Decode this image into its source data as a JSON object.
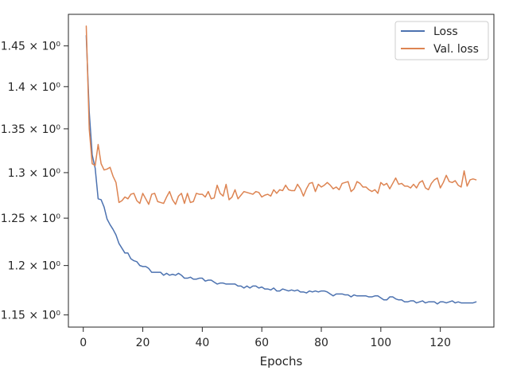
{
  "chart_data": {
    "type": "line",
    "title": "",
    "xlabel": "Epochs",
    "ylabel": "",
    "y_scale": "log",
    "grid": false,
    "legend_position": "top-right",
    "xlim": [
      -5,
      138
    ],
    "ylim": [
      1.138,
      1.49
    ],
    "x_ticks": [
      {
        "value": 0,
        "label": "0"
      },
      {
        "value": 20,
        "label": "20"
      },
      {
        "value": 40,
        "label": "40"
      },
      {
        "value": 60,
        "label": "60"
      },
      {
        "value": 80,
        "label": "80"
      },
      {
        "value": 100,
        "label": "100"
      },
      {
        "value": 120,
        "label": "120"
      }
    ],
    "y_ticks": [
      {
        "value": 1.15,
        "label": "1.15 × 10⁰"
      },
      {
        "value": 1.2,
        "label": "1.2 × 10⁰"
      },
      {
        "value": 1.25,
        "label": "1.25 × 10⁰"
      },
      {
        "value": 1.3,
        "label": "1.3 × 10⁰"
      },
      {
        "value": 1.35,
        "label": "1.35 × 10⁰"
      },
      {
        "value": 1.4,
        "label": "1.4 × 10⁰"
      },
      {
        "value": 1.45,
        "label": "1.45 × 10⁰"
      }
    ],
    "x": [
      1,
      2,
      3,
      4,
      5,
      6,
      7,
      8,
      9,
      10,
      11,
      12,
      13,
      14,
      15,
      16,
      17,
      18,
      19,
      20,
      21,
      22,
      23,
      24,
      25,
      26,
      27,
      28,
      29,
      30,
      31,
      32,
      33,
      34,
      35,
      36,
      37,
      38,
      39,
      40,
      41,
      42,
      43,
      44,
      45,
      46,
      47,
      48,
      49,
      50,
      51,
      52,
      53,
      54,
      55,
      56,
      57,
      58,
      59,
      60,
      61,
      62,
      63,
      64,
      65,
      66,
      67,
      68,
      69,
      70,
      71,
      72,
      73,
      74,
      75,
      76,
      77,
      78,
      79,
      80,
      81,
      82,
      83,
      84,
      85,
      86,
      87,
      88,
      89,
      90,
      91,
      92,
      93,
      94,
      95,
      96,
      97,
      98,
      99,
      100,
      101,
      102,
      103,
      104,
      105,
      106,
      107,
      108,
      109,
      110,
      111,
      112,
      113,
      114,
      115,
      116,
      117,
      118,
      119,
      120,
      121,
      122,
      123,
      124,
      125,
      126,
      127,
      128,
      129,
      130,
      131,
      132
    ],
    "series": [
      {
        "name": "Loss",
        "color": "#4c72b0",
        "values": [
          1.463,
          1.37,
          1.32,
          1.305,
          1.271,
          1.27,
          1.262,
          1.249,
          1.243,
          1.238,
          1.232,
          1.223,
          1.218,
          1.213,
          1.213,
          1.207,
          1.205,
          1.204,
          1.2,
          1.199,
          1.199,
          1.197,
          1.193,
          1.193,
          1.193,
          1.193,
          1.19,
          1.192,
          1.19,
          1.191,
          1.19,
          1.192,
          1.19,
          1.187,
          1.187,
          1.188,
          1.186,
          1.186,
          1.187,
          1.187,
          1.184,
          1.185,
          1.185,
          1.183,
          1.181,
          1.182,
          1.182,
          1.181,
          1.181,
          1.181,
          1.181,
          1.179,
          1.179,
          1.177,
          1.179,
          1.177,
          1.179,
          1.179,
          1.177,
          1.178,
          1.176,
          1.176,
          1.175,
          1.177,
          1.174,
          1.174,
          1.176,
          1.175,
          1.174,
          1.175,
          1.174,
          1.175,
          1.173,
          1.173,
          1.172,
          1.174,
          1.173,
          1.174,
          1.173,
          1.174,
          1.174,
          1.173,
          1.171,
          1.169,
          1.171,
          1.171,
          1.171,
          1.17,
          1.17,
          1.168,
          1.17,
          1.169,
          1.169,
          1.169,
          1.169,
          1.168,
          1.168,
          1.169,
          1.169,
          1.167,
          1.165,
          1.165,
          1.168,
          1.168,
          1.166,
          1.165,
          1.165,
          1.163,
          1.163,
          1.164,
          1.164,
          1.162,
          1.163,
          1.164,
          1.162,
          1.163,
          1.163,
          1.163,
          1.161,
          1.163,
          1.163,
          1.162,
          1.163,
          1.164,
          1.162,
          1.163,
          1.162,
          1.162,
          1.162,
          1.162,
          1.162,
          1.163
        ]
      },
      {
        "name": "Val. loss",
        "color": "#dd8452",
        "values": [
          1.475,
          1.35,
          1.31,
          1.308,
          1.332,
          1.31,
          1.303,
          1.304,
          1.306,
          1.296,
          1.289,
          1.267,
          1.269,
          1.273,
          1.271,
          1.276,
          1.277,
          1.269,
          1.266,
          1.277,
          1.271,
          1.265,
          1.276,
          1.277,
          1.268,
          1.267,
          1.266,
          1.273,
          1.279,
          1.27,
          1.265,
          1.274,
          1.277,
          1.266,
          1.277,
          1.267,
          1.268,
          1.277,
          1.276,
          1.276,
          1.273,
          1.279,
          1.271,
          1.272,
          1.286,
          1.277,
          1.274,
          1.287,
          1.27,
          1.273,
          1.281,
          1.271,
          1.275,
          1.279,
          1.278,
          1.277,
          1.276,
          1.279,
          1.278,
          1.273,
          1.275,
          1.276,
          1.274,
          1.281,
          1.277,
          1.281,
          1.28,
          1.286,
          1.281,
          1.28,
          1.28,
          1.287,
          1.282,
          1.274,
          1.282,
          1.288,
          1.289,
          1.279,
          1.287,
          1.284,
          1.286,
          1.289,
          1.286,
          1.282,
          1.284,
          1.281,
          1.288,
          1.289,
          1.29,
          1.279,
          1.282,
          1.29,
          1.288,
          1.284,
          1.284,
          1.281,
          1.279,
          1.281,
          1.277,
          1.289,
          1.286,
          1.288,
          1.282,
          1.288,
          1.294,
          1.287,
          1.288,
          1.285,
          1.285,
          1.283,
          1.287,
          1.283,
          1.289,
          1.291,
          1.283,
          1.281,
          1.288,
          1.292,
          1.294,
          1.283,
          1.289,
          1.297,
          1.29,
          1.289,
          1.291,
          1.286,
          1.284,
          1.302,
          1.285,
          1.292,
          1.293,
          1.292
        ]
      }
    ]
  }
}
